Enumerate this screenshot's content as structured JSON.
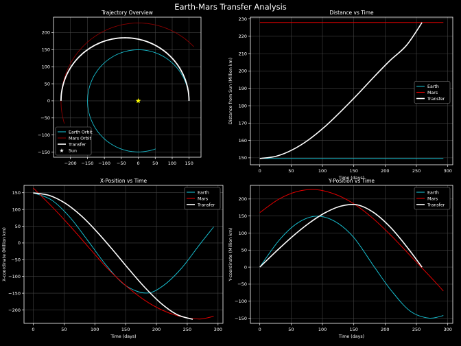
{
  "suptitle": "Earth-Mars Transfer Analysis",
  "colors": {
    "earth": "#17becf",
    "mars": "#8b0000",
    "mars_bright": "#e00000",
    "transfer": "#ffffff",
    "sun": "#ffff00",
    "grid": "#444444"
  },
  "chart_data": [
    {
      "type": "line",
      "title": "Trajectory Overview",
      "xlabel": "",
      "ylabel": "",
      "xlim": [
        -250,
        185
      ],
      "ylim": [
        -165,
        245
      ],
      "xticks": [
        -200,
        -150,
        -100,
        -50,
        0,
        50,
        100,
        150
      ],
      "yticks": [
        -150,
        -100,
        -50,
        0,
        50,
        100,
        150,
        200
      ],
      "grid": true,
      "legend": {
        "loc": "lower-left",
        "entries": [
          "Earth Orbit",
          "Mars Orbit",
          "Transfer",
          "Sun"
        ]
      },
      "series": [
        {
          "name": "Earth Orbit",
          "kind": "circle",
          "radius": 149.6,
          "start_deg": 0,
          "end_deg": 290,
          "color": "earth"
        },
        {
          "name": "Mars Orbit",
          "kind": "circle",
          "radius": 227.9,
          "start_deg": 44,
          "end_deg": 197,
          "color": "mars"
        },
        {
          "name": "Transfer",
          "kind": "ellipse",
          "a": 188.75,
          "b": 184.65,
          "cx": -39.15,
          "start_deg": 0,
          "end_deg": 180,
          "color": "transfer"
        },
        {
          "name": "Sun",
          "kind": "point",
          "x": 0,
          "y": 0,
          "color": "sun"
        }
      ]
    },
    {
      "type": "line",
      "title": "Distance vs Time",
      "xlabel": "Time (days)",
      "ylabel": "Distance from Sun (Million km)",
      "xlim": [
        -15,
        308
      ],
      "ylim": [
        146,
        231
      ],
      "xticks": [
        0,
        50,
        100,
        150,
        200,
        250,
        300
      ],
      "yticks": [
        150,
        160,
        170,
        180,
        190,
        200,
        210,
        220,
        230
      ],
      "grid": true,
      "legend": {
        "loc": "center-right",
        "entries": [
          "Earth",
          "Mars",
          "Transfer"
        ]
      },
      "series": [
        {
          "name": "Earth",
          "x": [
            0,
            293
          ],
          "y": [
            149.6,
            149.6
          ],
          "color": "earth"
        },
        {
          "name": "Mars",
          "x": [
            0,
            293
          ],
          "y": [
            227.9,
            227.9
          ],
          "color": "mars_bright"
        },
        {
          "name": "Transfer",
          "x": [
            0,
            26,
            52,
            78,
            104,
            130,
            156,
            182,
            208,
            234,
            259
          ],
          "y": [
            149.6,
            150.9,
            154.6,
            160.4,
            168.0,
            176.9,
            186.5,
            196.5,
            206.1,
            214.7,
            227.9
          ],
          "color": "transfer"
        }
      ]
    },
    {
      "type": "line",
      "title": "X-Position vs Time",
      "xlabel": "Time (days)",
      "ylabel": "X-coordinate (Million km)",
      "xlim": [
        -15,
        308
      ],
      "ylim": [
        -240,
        172
      ],
      "xticks": [
        0,
        50,
        100,
        150,
        200,
        250,
        300
      ],
      "yticks": [
        -200,
        -150,
        -100,
        -50,
        0,
        50,
        100,
        150
      ],
      "grid": true,
      "legend": {
        "loc": "top-right",
        "entries": [
          "Earth",
          "Mars",
          "Transfer"
        ]
      },
      "series": [
        {
          "name": "Earth",
          "x": [
            0,
            30,
            60,
            90,
            120,
            150,
            183,
            210,
            240,
            270,
            293
          ],
          "y": [
            149.6,
            127.9,
            75.8,
            3.5,
            -70.0,
            -127.0,
            -149.6,
            -129.0,
            -77.0,
            -5.0,
            48.0
          ],
          "color": "earth"
        },
        {
          "name": "Mars",
          "x": [
            0,
            30,
            60,
            90,
            120,
            150,
            180,
            210,
            240,
            270,
            293
          ],
          "y": [
            164.0,
            109.0,
            50.0,
            -13.0,
            -75.0,
            -127.0,
            -170.0,
            -201.0,
            -220.0,
            -227.0,
            -219.0
          ],
          "color": "mars_bright"
        },
        {
          "name": "Transfer",
          "x": [
            0,
            26,
            52,
            78,
            104,
            130,
            156,
            182,
            208,
            234,
            259
          ],
          "y": [
            149.6,
            142.0,
            118.5,
            81.0,
            32.3,
            -22.7,
            -80.0,
            -134.5,
            -180.9,
            -214.4,
            -227.9
          ],
          "color": "transfer"
        }
      ]
    },
    {
      "type": "line",
      "title": "Y-Position vs Time",
      "xlabel": "Time (days)",
      "ylabel": "Y-coordinate (Million km)",
      "xlim": [
        -15,
        308
      ],
      "ylim": [
        -165,
        240
      ],
      "xticks": [
        0,
        50,
        100,
        150,
        200,
        250,
        300
      ],
      "yticks": [
        -150,
        -100,
        -50,
        0,
        50,
        100,
        150,
        200
      ],
      "grid": true,
      "legend": {
        "loc": "top-right",
        "entries": [
          "Earth",
          "Mars",
          "Transfer"
        ]
      },
      "series": [
        {
          "name": "Earth",
          "x": [
            0,
            30,
            60,
            90,
            120,
            150,
            183,
            210,
            240,
            270,
            293
          ],
          "y": [
            0.0,
            77.0,
            129.0,
            149.5,
            134.0,
            87.0,
            0.0,
            -69.0,
            -129.0,
            -149.6,
            -142.0
          ],
          "color": "earth"
        },
        {
          "name": "Mars",
          "x": [
            0,
            30,
            60,
            90,
            120,
            150,
            180,
            210,
            240,
            270,
            293
          ],
          "y": [
            160.0,
            199.0,
            222.0,
            227.5,
            214.0,
            186.0,
            144.0,
            92.0,
            34.0,
            -24.0,
            -70.0
          ],
          "color": "mars_bright"
        },
        {
          "name": "Transfer",
          "x": [
            0,
            26,
            52,
            78,
            104,
            130,
            156,
            182,
            208,
            234,
            259
          ],
          "y": [
            0.0,
            46.0,
            89.6,
            128.2,
            159.4,
            179.4,
            182.5,
            160.0,
            117.8,
            61.3,
            0.0
          ],
          "color": "transfer"
        }
      ]
    }
  ]
}
